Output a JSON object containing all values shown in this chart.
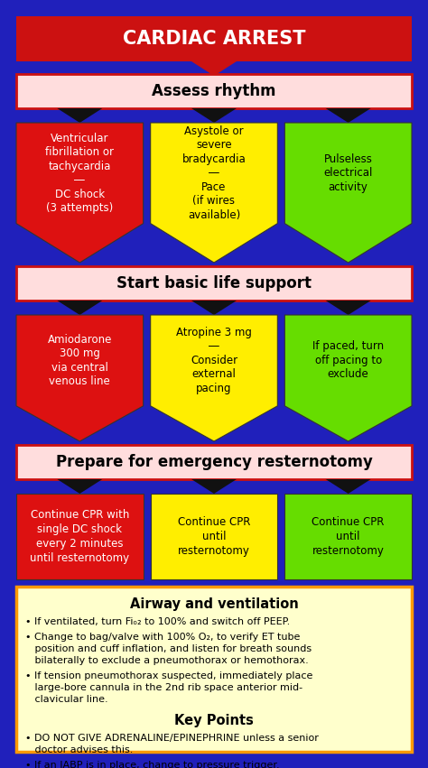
{
  "bg_color": "#2020bb",
  "title_text": "CARDIAC ARREST",
  "title_bg": "#cc1111",
  "title_text_color": "#ffffff",
  "section_bar_bg": "#ffdddd",
  "section_bar_border": "#cc1111",
  "sections": [
    "Assess rhythm",
    "Start basic life support",
    "Prepare for emergency resternotomy"
  ],
  "arrow_rows": [
    [
      {
        "color": "#dd1111",
        "text": "Ventricular\nfibrillation or\ntachycardia\n―\nDC shock\n(3 attempts)",
        "text_color": "#ffffff"
      },
      {
        "color": "#ffee00",
        "text": "Asystole or\nsevere\nbradycardia\n―\nPace\n(if wires\navailable)",
        "text_color": "#000000"
      },
      {
        "color": "#66dd00",
        "text": "Pulseless\nelectrical\nactivity",
        "text_color": "#000000"
      }
    ],
    [
      {
        "color": "#dd1111",
        "text": "Amiodarone\n300 mg\nvia central\nvenous line",
        "text_color": "#ffffff"
      },
      {
        "color": "#ffee00",
        "text": "Atropine 3 mg\n―\nConsider\nexternal\npacing",
        "text_color": "#000000"
      },
      {
        "color": "#66dd00",
        "text": "If paced, turn\noff pacing to\nexclude",
        "text_color": "#000000"
      }
    ],
    [
      {
        "color": "#dd1111",
        "text": "Continue CPR with\nsingle DC shock\nevery 2 minutes\nuntil resternotomy",
        "text_color": "#ffffff"
      },
      {
        "color": "#ffee00",
        "text": "Continue CPR\nuntil\nresternotomy",
        "text_color": "#000000"
      },
      {
        "color": "#66dd00",
        "text": "Continue CPR\nuntil\nresternotomy",
        "text_color": "#000000"
      }
    ]
  ],
  "bottom_box_bg": "#ffffcc",
  "bottom_box_border": "#ff9900",
  "airway_title": "Airway and ventilation",
  "keypoints_title": "Key Points"
}
